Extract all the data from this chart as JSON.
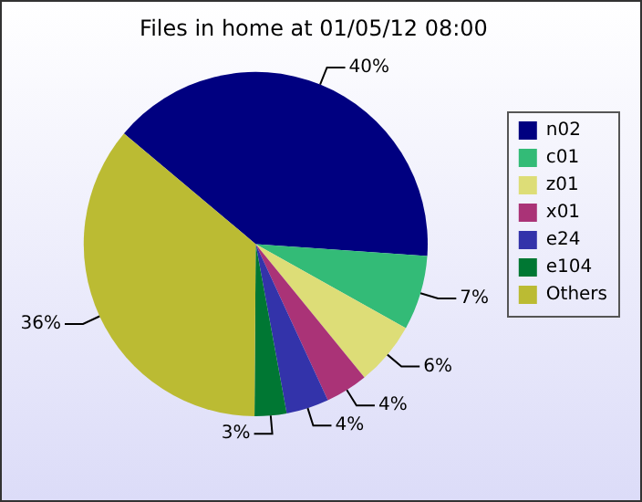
{
  "chart_data": {
    "type": "pie",
    "title": "Files in home at 01/05/12 08:00",
    "categories": [
      "n02",
      "c01",
      "z01",
      "x01",
      "e24",
      "e104",
      "Others"
    ],
    "values": [
      40,
      7,
      6,
      4,
      4,
      3,
      36
    ],
    "value_labels": [
      "40%",
      "7%",
      "6%",
      "4%",
      "4%",
      "3%",
      "36%"
    ],
    "colors": [
      "#000080",
      "#33bb77",
      "#dddd77",
      "#aa3377",
      "#3333aa",
      "#007733",
      "#bbbb33"
    ],
    "legend": "right"
  }
}
